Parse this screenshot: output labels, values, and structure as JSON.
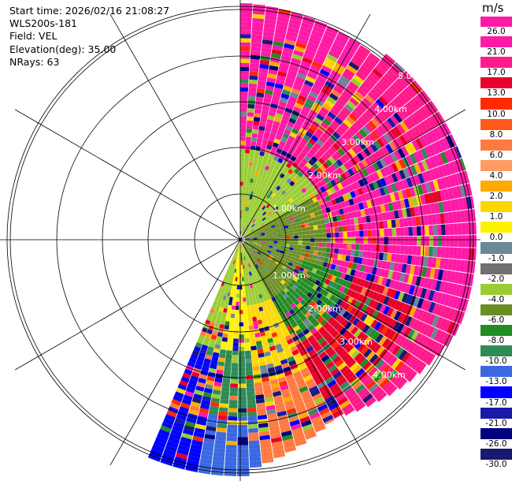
{
  "info": {
    "start_time": "Start time: 2026/02/16 21:08:27",
    "instrument": "WLS200s-181",
    "field": "Field: VEL",
    "elevation": "Elevation(deg): 35.00",
    "nrays": "NRays: 63"
  },
  "range_labels": [
    "1.00km",
    "1.00km",
    "2.00km",
    "2.00km",
    "3.00km",
    "3.00km",
    "4.00km",
    "4.00km",
    "5.00km"
  ],
  "colorbar": {
    "unit": "m/s",
    "ticks": [
      "26.0",
      "21.0",
      "17.0",
      "13.0",
      "10.0",
      "8.0",
      "6.0",
      "4.0",
      "2.0",
      "1.0",
      "0.0",
      "-1.0",
      "-2.0",
      "-4.0",
      "-6.0",
      "-8.0",
      "-10.0",
      "-13.0",
      "-17.0",
      "-21.0",
      "-26.0",
      "-30.0"
    ],
    "colors": [
      "#ff1aa6",
      "#ff1a8c",
      "#e8002a",
      "#ff2a00",
      "#ff5a1a",
      "#ff7a40",
      "#ff9a60",
      "#ffaa00",
      "#ffd700",
      "#fff200",
      "#6c8796",
      "#707070",
      "#9acd32",
      "#6b8e23",
      "#228b22",
      "#2e8b57",
      "#3a68e0",
      "#0000ff",
      "#1a1aa8",
      "#000080",
      "#191970"
    ]
  }
}
